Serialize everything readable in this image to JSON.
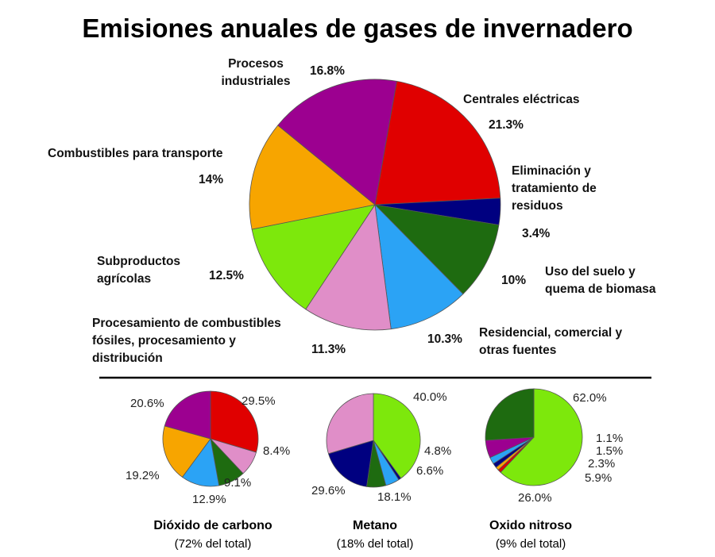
{
  "chart_data": [
    {
      "type": "pie",
      "title": "Emisiones anuales de gases de invernadero",
      "slices": [
        {
          "label": "Centrales eléctricas",
          "value": 21.3,
          "value_label": "21.3%",
          "color": "#e00000"
        },
        {
          "label": "Eliminación y tratamiento de residuos",
          "value": 3.4,
          "value_label": "3.4%",
          "color": "#000080"
        },
        {
          "label": "Uso del suelo y quema de biomasa",
          "value": 10,
          "value_label": "10%",
          "color": "#1e6b10"
        },
        {
          "label": "Residencial, comercial y otras fuentes",
          "value": 10.3,
          "value_label": "10.3%",
          "color": "#2ba3f5"
        },
        {
          "label": "Procesamiento de combustibles fósiles, procesamiento y distribución",
          "value": 11.3,
          "value_label": "11.3%",
          "color": "#e08ec8"
        },
        {
          "label": "Subproductos agrícolas",
          "value": 12.5,
          "value_label": "12.5%",
          "color": "#7de80c"
        },
        {
          "label": "Combustibles para transporte",
          "value": 14,
          "value_label": "14%",
          "color": "#f7a500"
        },
        {
          "label": "Procesos industriales",
          "value": 16.8,
          "value_label": "16.8%",
          "color": "#9c0090"
        }
      ]
    },
    {
      "type": "pie",
      "title": "Dióxido de carbono",
      "subtitle": "(72% del total)",
      "slices": [
        {
          "value": 29.5,
          "value_label": "29.5%",
          "color": "#e00000"
        },
        {
          "value": 8.4,
          "value_label": "8.4%",
          "color": "#e08ec8"
        },
        {
          "value": 9.1,
          "value_label": "9.1%",
          "color": "#1e6b10"
        },
        {
          "value": 12.9,
          "value_label": "12.9%",
          "color": "#2ba3f5"
        },
        {
          "value": 19.2,
          "value_label": "19.2%",
          "color": "#f7a500"
        },
        {
          "value": 20.6,
          "value_label": "20.6%",
          "color": "#9c0090"
        }
      ]
    },
    {
      "type": "pie",
      "title": "Metano",
      "subtitle": "(18% del total)",
      "slices": [
        {
          "value": 40.0,
          "value_label": "40.0%",
          "color": "#7de80c"
        },
        {
          "value": 0.9,
          "value_label": "",
          "color": "#000080"
        },
        {
          "value": 4.8,
          "value_label": "4.8%",
          "color": "#2ba3f5"
        },
        {
          "value": 6.6,
          "value_label": "6.6%",
          "color": "#1e6b10"
        },
        {
          "value": 18.1,
          "value_label": "18.1%",
          "color": "#000080"
        },
        {
          "value": 29.6,
          "value_label": "29.6%",
          "color": "#e08ec8"
        }
      ]
    },
    {
      "type": "pie",
      "title": "Oxido nitroso",
      "subtitle": "(9% del total)",
      "slices": [
        {
          "value": 62.0,
          "value_label": "62.0%",
          "color": "#7de80c"
        },
        {
          "value": 1.1,
          "value_label": "1.1%",
          "color": "#e00000"
        },
        {
          "value": 1.1,
          "value_label": "",
          "color": "#f7a500"
        },
        {
          "value": 1.5,
          "value_label": "1.5%",
          "color": "#000080"
        },
        {
          "value": 2.3,
          "value_label": "2.3%",
          "color": "#2ba3f5"
        },
        {
          "value": 5.9,
          "value_label": "5.9%",
          "color": "#9c0090"
        },
        {
          "value": 26.0,
          "value_label": "26.0%",
          "color": "#1e6b10"
        }
      ]
    }
  ]
}
